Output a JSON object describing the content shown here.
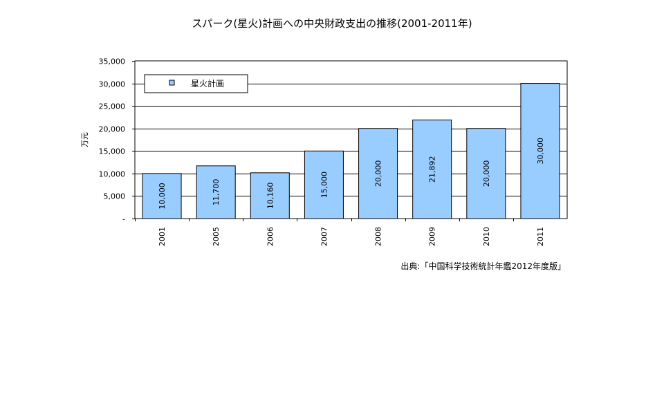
{
  "chart_data": {
    "type": "bar",
    "title": "スパーク(星火)計画への中央財政支出の推移(2001-2011年)",
    "ylabel": "万元",
    "xlabel": "",
    "categories": [
      "2001",
      "2005",
      "2006",
      "2007",
      "2008",
      "2009",
      "2010",
      "2011"
    ],
    "series": [
      {
        "name": "星火計画",
        "values": [
          10000,
          11700,
          10160,
          15000,
          20000,
          21892,
          20000,
          30000
        ],
        "value_labels": [
          "10,000",
          "11,700",
          "10,160",
          "15,000",
          "20,000",
          "21,892",
          "20,000",
          "30,000"
        ],
        "color": "#99ccff"
      }
    ],
    "ylim": [
      0,
      35000
    ],
    "yticks": [
      0,
      5000,
      10000,
      15000,
      20000,
      25000,
      30000,
      35000
    ],
    "ytick_labels": [
      "-",
      "5,000",
      "10,000",
      "15,000",
      "20,000",
      "25,000",
      "30,000",
      "35,000"
    ],
    "grid": true,
    "legend": "top-left",
    "source": "出典:「中国科学技術統計年鑑2012年度版」"
  }
}
